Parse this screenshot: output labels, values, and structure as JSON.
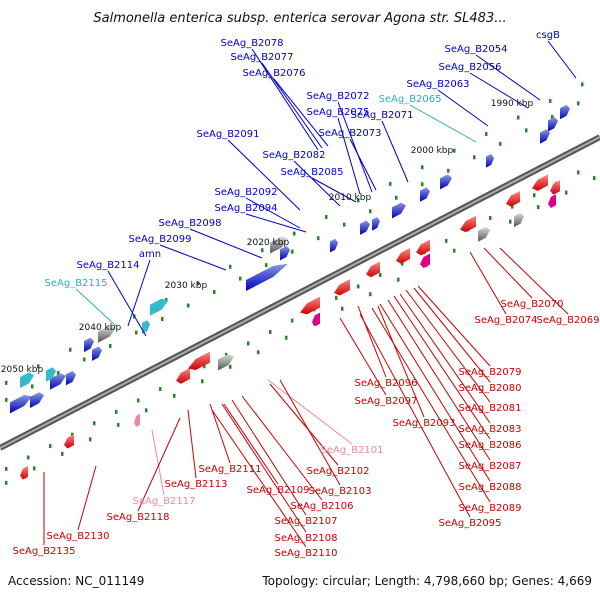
{
  "title": "Salmonella enterica subsp. enterica serovar Agona str. SL483...",
  "footer": {
    "accession": "Accession: NC_011149",
    "summary": "Topology: circular; Length: 4,798,660 bp; Genes: 4,669"
  },
  "kbp_labels": [
    "2050 kbp",
    "2040 kbp",
    "2030 kbp",
    "2020 kbp",
    "2010 kbp",
    "2000 kbp",
    "1990 kbp"
  ],
  "colors": {
    "forward": "#0000cc",
    "reverse": "#cc0000",
    "rna_forward": "#33aacc",
    "pseudo_reverse": "#ee88aa",
    "backbone": "#888888",
    "tick": "#228b22"
  },
  "gene_labels": [
    {
      "text": "SeAg_B2078",
      "strand": "forward"
    },
    {
      "text": "SeAg_B2077",
      "strand": "forward"
    },
    {
      "text": "SeAg_B2076",
      "strand": "forward"
    },
    {
      "text": "SeAg_B2072",
      "strand": "forward"
    },
    {
      "text": "SeAg_B2075",
      "strand": "forward"
    },
    {
      "text": "SeAg_B2071",
      "strand": "forward"
    },
    {
      "text": "SeAg_B2073",
      "strand": "forward"
    },
    {
      "text": "SeAg_B2091",
      "strand": "forward"
    },
    {
      "text": "SeAg_B2082",
      "strand": "forward"
    },
    {
      "text": "SeAg_B2085",
      "strand": "forward"
    },
    {
      "text": "SeAg_B2092",
      "strand": "forward"
    },
    {
      "text": "SeAg_B2094",
      "strand": "forward"
    },
    {
      "text": "SeAg_B2098",
      "strand": "forward"
    },
    {
      "text": "SeAg_B2099",
      "strand": "forward"
    },
    {
      "text": "amn",
      "strand": "forward"
    },
    {
      "text": "SeAg_B2114",
      "strand": "forward"
    },
    {
      "text": "SeAg_B2115",
      "strand": "rna_forward"
    },
    {
      "text": "SeAg_B2065",
      "strand": "rna_forward"
    },
    {
      "text": "SeAg_B2063",
      "strand": "forward"
    },
    {
      "text": "SeAg_B2056",
      "strand": "forward"
    },
    {
      "text": "SeAg_B2054",
      "strand": "forward"
    },
    {
      "text": "csgB",
      "strand": "forward"
    },
    {
      "text": "SeAg_B2070",
      "strand": "reverse"
    },
    {
      "text": "SeAg_B2074",
      "strand": "reverse"
    },
    {
      "text": "SeAg_B2069",
      "strand": "reverse"
    },
    {
      "text": "SeAg_B2079",
      "strand": "reverse"
    },
    {
      "text": "SeAg_B2080",
      "strand": "reverse"
    },
    {
      "text": "SeAg_B2096",
      "strand": "reverse"
    },
    {
      "text": "SeAg_B2097",
      "strand": "reverse"
    },
    {
      "text": "SeAg_B2081",
      "strand": "reverse"
    },
    {
      "text": "SeAg_B2093",
      "strand": "reverse"
    },
    {
      "text": "SeAg_B2083",
      "strand": "reverse"
    },
    {
      "text": "SeAg_B2086",
      "strand": "reverse"
    },
    {
      "text": "SeAg_B2101",
      "strand": "pseudo_reverse"
    },
    {
      "text": "SeAg_B2087",
      "strand": "reverse"
    },
    {
      "text": "SeAg_B2111",
      "strand": "reverse"
    },
    {
      "text": "SeAg_B2102",
      "strand": "reverse"
    },
    {
      "text": "SeAg_B2113",
      "strand": "reverse"
    },
    {
      "text": "SeAg_B2088",
      "strand": "reverse"
    },
    {
      "text": "SeAg_B2109",
      "strand": "reverse"
    },
    {
      "text": "SeAg_B2103",
      "strand": "reverse"
    },
    {
      "text": "SeAg_B2117",
      "strand": "pseudo_reverse"
    },
    {
      "text": "SeAg_B2106",
      "strand": "reverse"
    },
    {
      "text": "SeAg_B2089",
      "strand": "reverse"
    },
    {
      "text": "SeAg_B2118",
      "strand": "reverse"
    },
    {
      "text": "SeAg_B2107",
      "strand": "reverse"
    },
    {
      "text": "SeAg_B2095",
      "strand": "reverse"
    },
    {
      "text": "SeAg_B2108",
      "strand": "reverse"
    },
    {
      "text": "SeAg_B2130",
      "strand": "reverse"
    },
    {
      "text": "SeAg_B2110",
      "strand": "reverse"
    },
    {
      "text": "SeAg_B2135",
      "strand": "reverse"
    }
  ]
}
